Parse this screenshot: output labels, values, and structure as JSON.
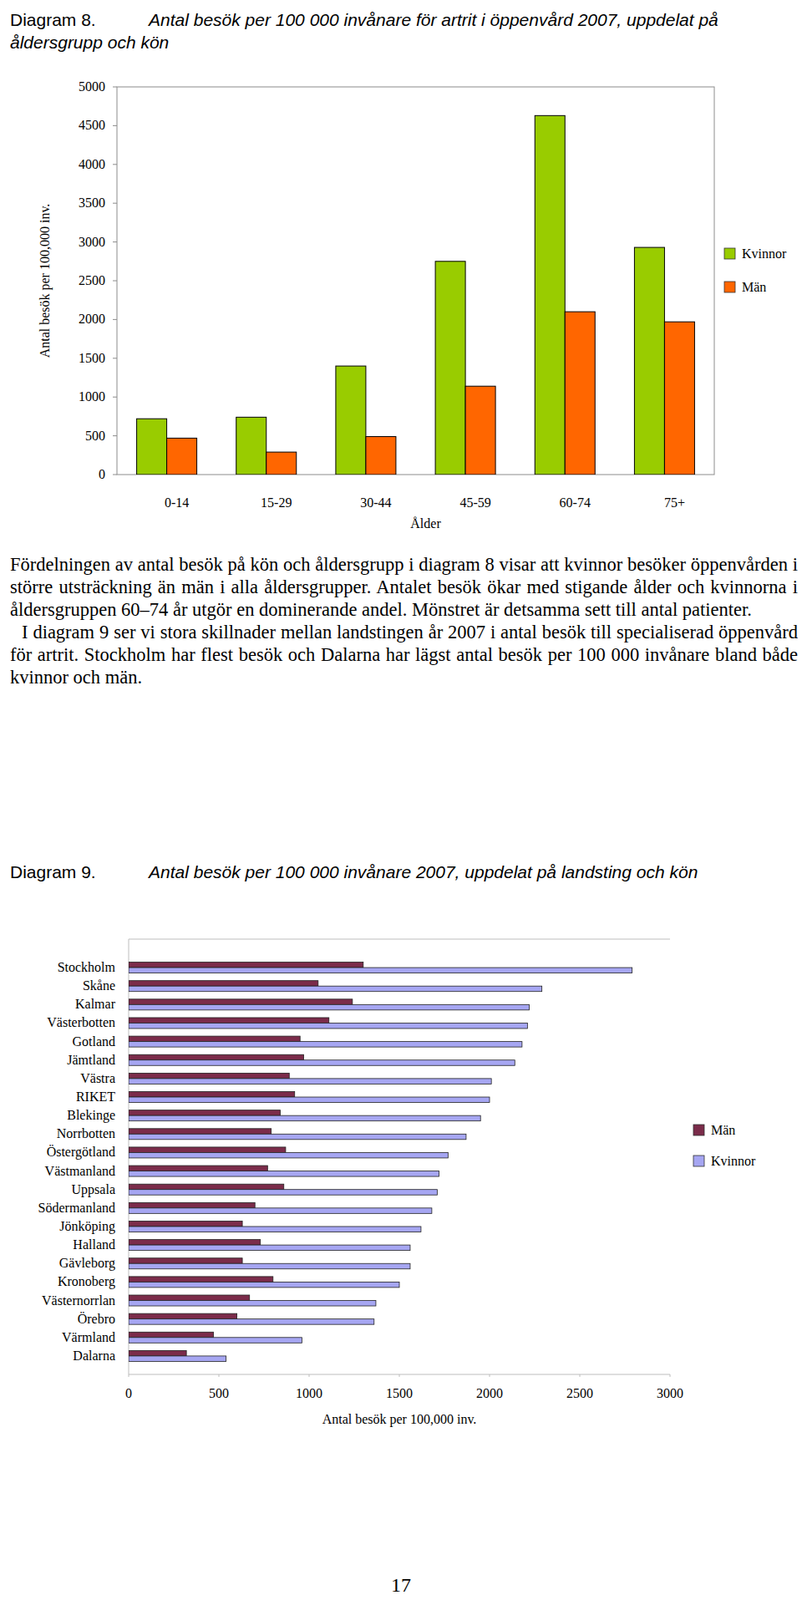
{
  "chart_data": [
    {
      "type": "bar",
      "figure_label": "Diagram 8.",
      "title": "Antal besök per 100 000 invånare för artrit i öppenvård 2007, uppdelat på åldersgrupp och kön",
      "categories": [
        "0-14",
        "15-29",
        "30-44",
        "45-59",
        "60-74",
        "75+"
      ],
      "series": [
        {
          "name": "Kvinnor",
          "color": "#99cc00",
          "values": [
            720,
            740,
            1400,
            2750,
            4630,
            2930
          ]
        },
        {
          "name": "Män",
          "color": "#ff6600",
          "values": [
            470,
            290,
            490,
            1140,
            2100,
            1970
          ]
        }
      ],
      "ylim": [
        0,
        5000
      ],
      "yticks": [
        0,
        500,
        1000,
        1500,
        2000,
        2500,
        3000,
        3500,
        4000,
        4500,
        5000
      ],
      "ylabel": "Antal besök per 100,000 inv.",
      "xlabel": "Ålder",
      "legend": "right",
      "grid": false
    },
    {
      "type": "bar",
      "orientation": "horizontal",
      "figure_label": "Diagram 9.",
      "title": "Antal besök per 100 000 invånare 2007, uppdelat på landsting och kön",
      "categories": [
        "Stockholm",
        "Skåne",
        "Kalmar",
        "Västerbotten",
        "Gotland",
        "Jämtland",
        "Västra",
        "RIKET",
        "Blekinge",
        "Norrbotten",
        "Östergötland",
        "Västmanland",
        "Uppsala",
        "Södermanland",
        "Jönköping",
        "Halland",
        "Gävleborg",
        "Kronoberg",
        "Västernorrlan",
        "Örebro",
        "Värmland",
        "Dalarna"
      ],
      "series": [
        {
          "name": "Män",
          "color": "#7b2c4a",
          "values": [
            1300,
            1050,
            1240,
            1110,
            950,
            970,
            890,
            920,
            840,
            790,
            870,
            770,
            860,
            700,
            630,
            730,
            630,
            800,
            670,
            600,
            470,
            320
          ]
        },
        {
          "name": "Kvinnor",
          "color": "#a6a6f2",
          "values": [
            2790,
            2290,
            2220,
            2210,
            2180,
            2140,
            2010,
            2000,
            1950,
            1870,
            1770,
            1720,
            1710,
            1680,
            1620,
            1560,
            1560,
            1500,
            1370,
            1360,
            960,
            540
          ]
        }
      ],
      "xlim": [
        0,
        3000
      ],
      "xticks": [
        0,
        500,
        1000,
        1500,
        2000,
        2500,
        3000
      ],
      "xlabel": "Antal besök per 100,000 inv.",
      "legend": "right",
      "grid": false
    }
  ],
  "paragraphs": [
    "Fördelningen av antal besök på kön och åldersgrupp i diagram 8 visar att kvinnor besöker öppenvården i större utsträckning än män i alla åldersgrupper. Antalet besök ökar med stigande ålder och kvinnorna i åldersgruppen 60–74 år utgör en dominerande andel. Mönstret är detsamma sett till antal patienter.",
    "I diagram 9 ser vi stora skillnader mellan landstingen år 2007 i antal besök till specialiserad öppenvård för artrit. Stockholm har flest besök och Dalarna har lägst antal besök per 100 000 invånare bland både kvinnor och män."
  ],
  "page_number": "17"
}
